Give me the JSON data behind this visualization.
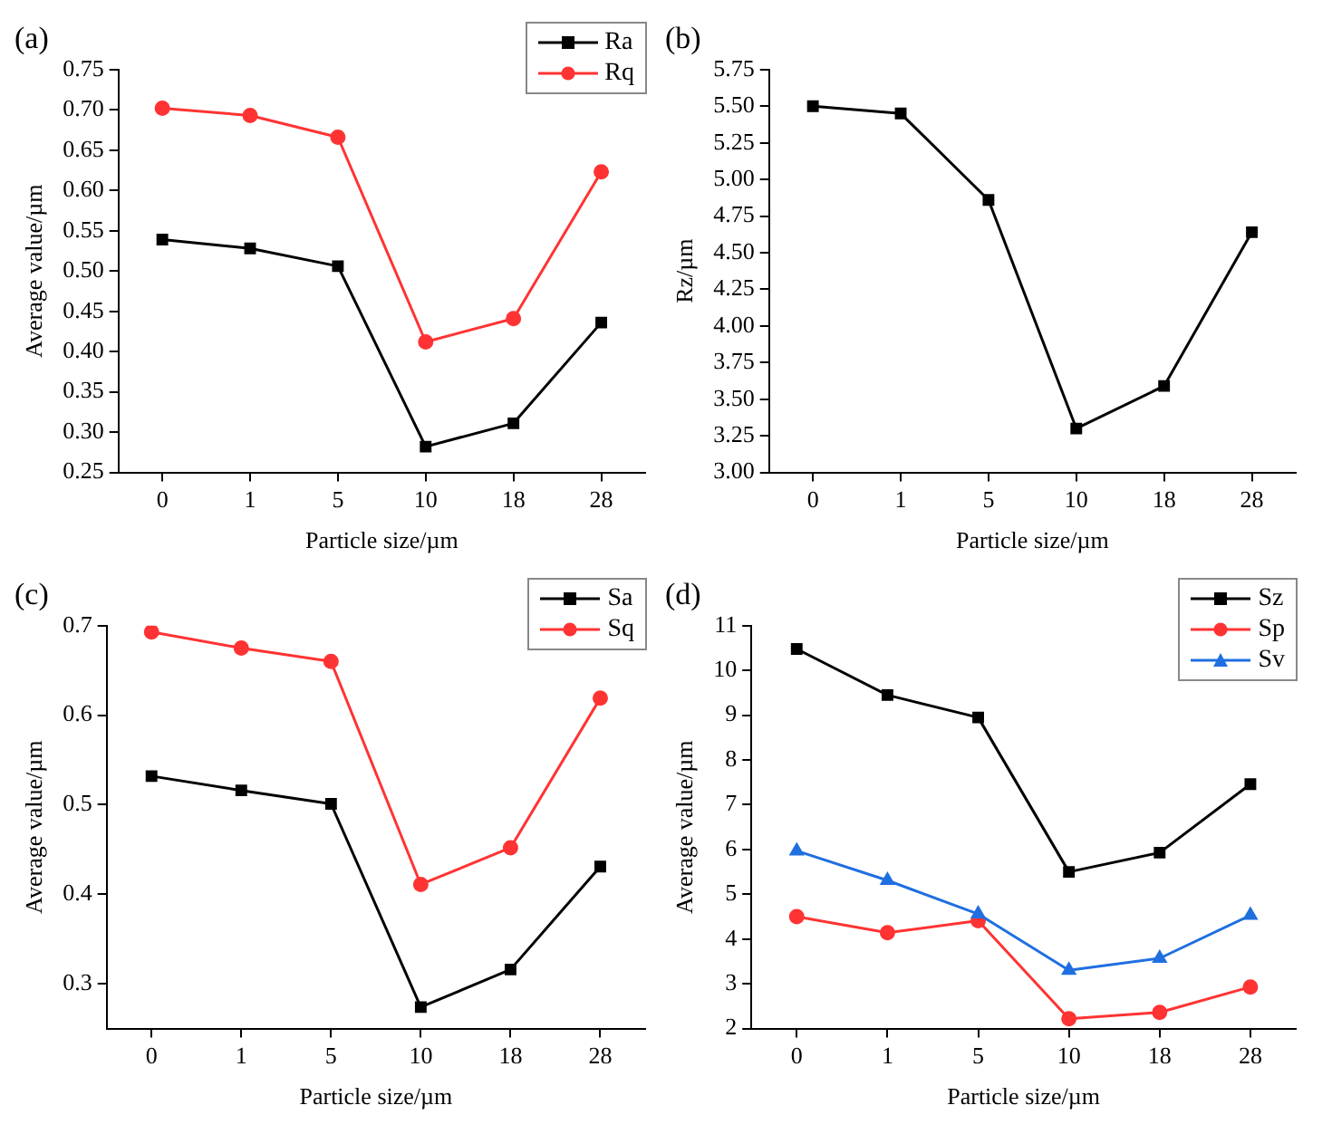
{
  "chart_data": [
    {
      "type": "line",
      "title": "(a)",
      "xlabel": "Particle size/µm",
      "ylabel": "Average value/µm",
      "categories": [
        "0",
        "1",
        "5",
        "10",
        "18",
        "28"
      ],
      "series": [
        {
          "name": "Ra",
          "color": "#000000",
          "marker": "square",
          "values": [
            0.539,
            0.528,
            0.506,
            0.282,
            0.311,
            0.436
          ]
        },
        {
          "name": "Rq",
          "color": "#ff3333",
          "marker": "circle",
          "values": [
            0.702,
            0.693,
            0.666,
            0.412,
            0.441,
            0.623
          ]
        }
      ],
      "ylim": [
        0.25,
        0.75
      ],
      "yticks": [
        0.25,
        {
          "value": 0.3,
          "label": "0.30"
        },
        0.35,
        {
          "value": 0.4,
          "label": "0.40"
        },
        0.45,
        {
          "value": 0.5,
          "label": "0.50"
        },
        0.55,
        {
          "value": 0.6,
          "label": "0.60"
        },
        0.65,
        {
          "value": 0.7,
          "label": "0.70"
        },
        0.75
      ],
      "grid": false,
      "legend": "top right",
      "line_style": "solid"
    },
    {
      "type": "line",
      "title": "(b)",
      "xlabel": "Particle size/µm",
      "ylabel": "Rz/µm",
      "categories": [
        "0",
        "1",
        "5",
        "10",
        "18",
        "28"
      ],
      "series": [
        {
          "color": "#000000",
          "marker": "square",
          "values": [
            5.5,
            5.45,
            4.86,
            3.3,
            3.59,
            4.64
          ]
        }
      ],
      "ylim": [
        3,
        5.75
      ],
      "yticks": [
        {
          "value": 3,
          "label": "3.00"
        },
        3.25,
        {
          "value": 3.5,
          "label": "3.50"
        },
        3.75,
        {
          "value": 4,
          "label": "4.00"
        },
        4.25,
        {
          "value": 4.5,
          "label": "4.50"
        },
        4.75,
        {
          "value": 5,
          "label": "5.00"
        },
        5.25,
        {
          "value": 5.5,
          "label": "5.50"
        },
        5.75
      ],
      "grid": false,
      "legend": false,
      "line_style": "solid"
    },
    {
      "type": "line",
      "title": "(c)",
      "xlabel": "Particle size/µm",
      "ylabel": "Average value/µm",
      "categories": [
        "0",
        "1",
        "5",
        "10",
        "18",
        "28"
      ],
      "series": [
        {
          "name": "Sa",
          "color": "#000000",
          "marker": "square",
          "values": [
            0.532,
            0.516,
            0.501,
            0.274,
            0.316,
            0.431
          ]
        },
        {
          "name": "Sq",
          "color": "#ff3333",
          "marker": "circle",
          "values": [
            0.693,
            0.675,
            0.66,
            0.411,
            0.452,
            0.619
          ]
        }
      ],
      "ylim": [
        0.25,
        0.7
      ],
      "yticks": [
        0.3,
        0.4,
        0.5,
        0.6,
        0.7
      ],
      "grid": false,
      "legend": "top right",
      "line_style": "solid"
    },
    {
      "type": "line",
      "title": "(d)",
      "xlabel": "Particle size/µm",
      "ylabel": "Average value/µm",
      "categories": [
        "0",
        "1",
        "5",
        "10",
        "18",
        "28"
      ],
      "series": [
        {
          "name": "Sz",
          "color": "#000000",
          "marker": "square",
          "values": [
            10.48,
            9.45,
            8.95,
            5.5,
            5.93,
            7.46
          ]
        },
        {
          "name": "Sp",
          "color": "#ff3333",
          "marker": "circle",
          "values": [
            4.5,
            4.14,
            4.41,
            2.22,
            2.36,
            2.93
          ]
        },
        {
          "name": "Sv",
          "color": "#1f6fe0",
          "marker": "triangle",
          "values": [
            5.97,
            5.31,
            4.56,
            3.3,
            3.57,
            4.53
          ]
        }
      ],
      "ylim": [
        2,
        11
      ],
      "yticks": [
        2,
        3,
        4,
        5,
        6,
        7,
        8,
        9,
        10,
        11
      ],
      "grid": false,
      "legend": "top right",
      "line_style": "solid"
    }
  ]
}
